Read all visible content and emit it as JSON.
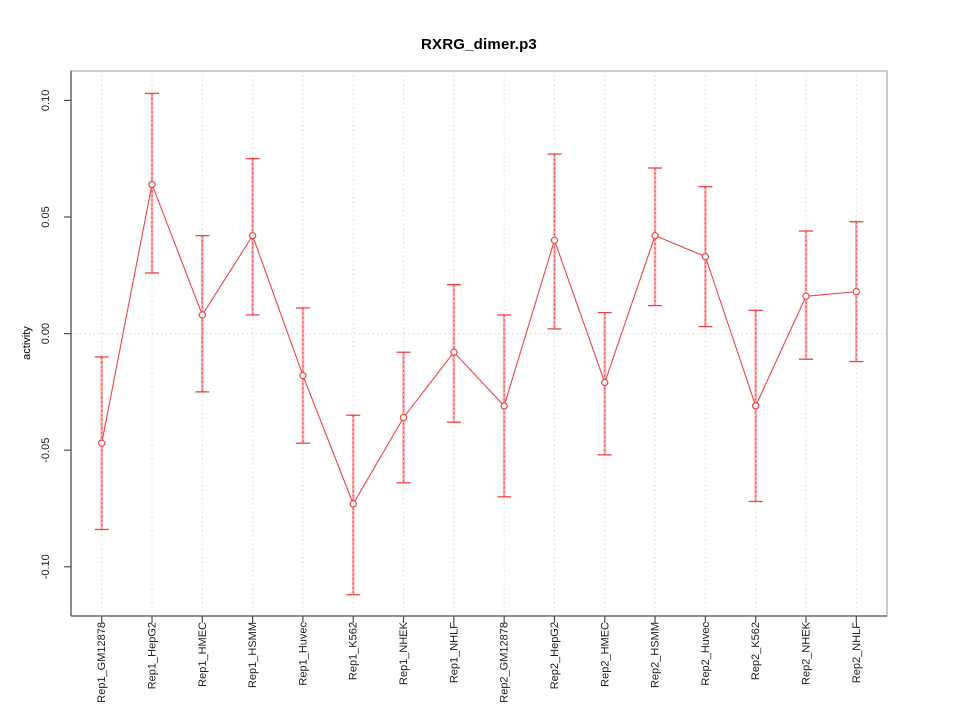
{
  "window": {
    "background": "#ffffff"
  },
  "chart_data": {
    "type": "line",
    "title": "RXRG_dimer.p3",
    "xlabel": "",
    "ylabel": "activity",
    "legend_position": "none",
    "point_style": "open-circle",
    "error_bars": true,
    "grid": {
      "vertical_dotted_per_category": true,
      "horizontal_dotted_at_zero": true
    },
    "categories": [
      "Rep1_GM12878",
      "Rep1_HepG2",
      "Rep1_HMEC",
      "Rep1_HSMM",
      "Rep1_Huvec",
      "Rep1_K562",
      "Rep1_NHEK",
      "Rep1_NHLF",
      "Rep2_GM12878",
      "Rep2_HepG2",
      "Rep2_HMEC",
      "Rep2_HSMM",
      "Rep2_Huvec",
      "Rep2_K562",
      "Rep2_NHEK",
      "Rep2_NHLF"
    ],
    "series": [
      {
        "name": "activity",
        "values": [
          -0.047,
          0.064,
          0.008,
          0.042,
          -0.018,
          -0.073,
          -0.036,
          -0.008,
          -0.031,
          0.04,
          -0.021,
          0.042,
          0.033,
          -0.031,
          0.016,
          0.018
        ],
        "ci_upper": [
          -0.01,
          0.103,
          0.042,
          0.075,
          0.011,
          -0.035,
          -0.008,
          0.021,
          0.008,
          0.077,
          0.009,
          0.071,
          0.063,
          0.01,
          0.044,
          0.048
        ],
        "ci_lower": [
          -0.084,
          0.026,
          -0.025,
          0.008,
          -0.047,
          -0.112,
          -0.064,
          -0.038,
          -0.07,
          0.002,
          -0.052,
          0.012,
          0.003,
          -0.072,
          -0.011,
          -0.012
        ]
      }
    ],
    "yticks": [
      0.1,
      0.05,
      0.0,
      -0.05,
      -0.1
    ],
    "ytick_labels": [
      "0.10",
      "0.05",
      "0.00",
      "-0.05",
      "-0.10"
    ],
    "ylim": [
      -0.1211,
      0.1126
    ],
    "colors": {
      "line": "#ee4444",
      "point_stroke": "#ee4444",
      "point_fill": "#ffffff",
      "ci_bar_pale": "#ffb0b0",
      "ci_bar_dash": "#ef4b4b",
      "ci_cap": "#ee4444",
      "grid": "#d9d9d9",
      "zero_line": "#d0d0d0",
      "axis": "#4d4d4d",
      "box": "#999999",
      "text": "#1a1a1a"
    }
  }
}
